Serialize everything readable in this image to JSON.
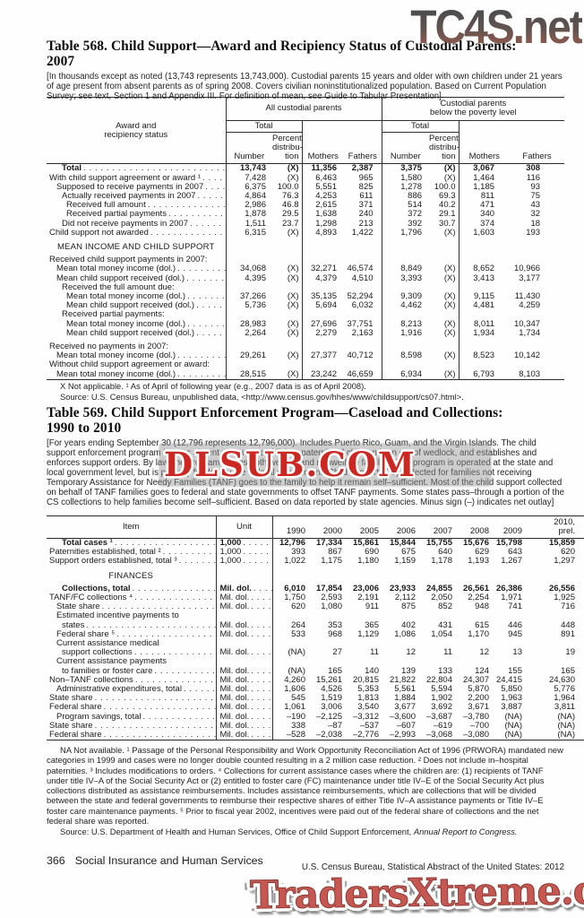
{
  "watermarks": {
    "top": "TC4S.net",
    "middle": "DLSUB.COM",
    "bottom": "TradersXtreme.com"
  },
  "table568": {
    "title_line1": "Table 568. Child Support—Award and Recipiency Status of Custodial Parents:",
    "title_line2": "2007",
    "headnote": "[In thousands except as noted (13,743 represents 13,743,000). Custodial parents 15 years and older with own children under 21 years of age present from absent parents as of spring 2008. Covers civilian noninstitutionalized population. Based on Current Population Survey; see text, Section 1 and Appendix III. For definition of mean, see Guide to Tabular Presentation]",
    "stub_header": "Award and\nrecipiency status",
    "group1": "All custodial parents",
    "group2": "Custodial parents\nbelow the poverty level",
    "total_label": "Total",
    "number_label": "Number",
    "percent_label": "Percent\ndistribu-\ntion",
    "mothers_label": "Mothers",
    "fathers_label": "Fathers",
    "rows": [
      {
        "label": "Total",
        "bold": true,
        "indent": 2,
        "values": [
          "13,743",
          "(X)",
          "11,356",
          "2,387",
          "3,375",
          "(X)",
          "3,067",
          "308"
        ]
      },
      {
        "label": "With child support agreement or award ¹",
        "indent": 0,
        "values": [
          "7,428",
          "(X)",
          "6,463",
          "965",
          "1,580",
          "(X)",
          "1,464",
          "116"
        ]
      },
      {
        "label": "Supposed to receive payments in 2007",
        "indent": 1,
        "values": [
          "6,375",
          "100.0",
          "5,551",
          "825",
          "1,278",
          "100.0",
          "1,185",
          "93"
        ]
      },
      {
        "label": "Actually received payments in 2007",
        "indent": 2,
        "values": [
          "4,864",
          "76.3",
          "4,253",
          "611",
          "886",
          "69.3",
          "811",
          "75"
        ]
      },
      {
        "label": "Received full amount",
        "indent": 3,
        "values": [
          "2,986",
          "46.8",
          "2,615",
          "371",
          "514",
          "40.2",
          "471",
          "43"
        ]
      },
      {
        "label": "Received partial payments",
        "indent": 3,
        "values": [
          "1,878",
          "29.5",
          "1,638",
          "240",
          "372",
          "29.1",
          "340",
          "32"
        ]
      },
      {
        "label": "Did not receive payments in 2007",
        "indent": 2,
        "values": [
          "1,511",
          "23.7",
          "1,298",
          "213",
          "392",
          "30.7",
          "374",
          "18"
        ]
      },
      {
        "label": "Child support not awarded",
        "indent": 0,
        "values": [
          "6,315",
          "(X)",
          "4,893",
          "1,422",
          "1,796",
          "(X)",
          "1,603",
          "193"
        ]
      },
      {
        "type": "section",
        "label": "MEAN INCOME AND CHILD SUPPORT"
      },
      {
        "type": "label",
        "label": "Received child support payments in 2007:",
        "indent": 0
      },
      {
        "label": "Mean total money income (dol.)",
        "indent": 1,
        "values": [
          "34,068",
          "(X)",
          "32,271",
          "46,574",
          "8,849",
          "(X)",
          "8,652",
          "10,966"
        ]
      },
      {
        "label": "Mean child support received (dol.)",
        "indent": 1,
        "values": [
          "4,395",
          "(X)",
          "4,379",
          "4,510",
          "3,393",
          "(X)",
          "3,413",
          "3,177"
        ]
      },
      {
        "type": "label",
        "label": "Received the full amount due:",
        "indent": 2
      },
      {
        "label": "Mean total money income (dol.)",
        "indent": 3,
        "values": [
          "37,266",
          "(X)",
          "35,135",
          "52,294",
          "9,309",
          "(X)",
          "9,115",
          "11,430"
        ]
      },
      {
        "label": "Mean child support received (dol.)",
        "indent": 3,
        "values": [
          "5,736",
          "(X)",
          "5,694",
          "6,032",
          "4,462",
          "(X)",
          "4,481",
          "4,259"
        ]
      },
      {
        "type": "label",
        "label": "Received partial payments:",
        "indent": 2
      },
      {
        "label": "Mean total money income (dol.)",
        "indent": 3,
        "values": [
          "28,983",
          "(X)",
          "27,696",
          "37,751",
          "8,213",
          "(X)",
          "8,011",
          "10,347"
        ]
      },
      {
        "label": "Mean child support received (dol.)",
        "indent": 3,
        "values": [
          "2,264",
          "(X)",
          "2,279",
          "2,163",
          "1,916",
          "(X)",
          "1,934",
          "1,734"
        ]
      },
      {
        "type": "gap"
      },
      {
        "type": "label",
        "label": "Received no payments in 2007:",
        "indent": 0
      },
      {
        "label": "Mean total money income (dol.)",
        "indent": 1,
        "values": [
          "29,261",
          "(X)",
          "27,377",
          "40,712",
          "8,598",
          "(X)",
          "8,523",
          "10,142"
        ]
      },
      {
        "type": "label",
        "label": "Without child support agreement or award:",
        "indent": 0
      },
      {
        "label": "Mean total money income (dol.)",
        "indent": 1,
        "values": [
          "28,515",
          "(X)",
          "23,242",
          "46,659",
          "6,934",
          "(X)",
          "6,793",
          "8,103"
        ]
      }
    ],
    "footnote": "X Not applicable. ¹ As of April of following year (e.g., 2007 data is as of April 2008).",
    "source": "Source: U.S. Census Bureau, unpublished data, <http://www.census.gov/hhes/www/childsupport/cs07.html>."
  },
  "table569": {
    "title_line1": "Table 569. Child Support Enforcement Program—Caseload and Collections:",
    "title_line2": "1990 to 2010",
    "headnote": "[For years ending September 30 (12,796 represents 12,796,000). Includes Puerto Rico, Guam, and the Virgin Islands. The child support enforcement program locates absent parents, establishes paternity of children born out of wedlock, and establishes and enforces support orders. By law, the program serves both welfare and nonwelfare families. The program is operated at the state and local government level, but is partially funded by the federal government. Child support (CS) collected for families not receiving Temporary Assistance for Needy Families (TANF) goes to the family to help it remain self–sufficient. Most of the child support collected on behalf of TANF families goes to federal and state governments to offset TANF payments. Some states pass–through a portion of the CS collections to help families become self–sufficient. Based on data reported by state agencies. Minus sign (–) indicates net outlay]",
    "item_header": "Item",
    "unit_header": "Unit",
    "years": [
      "1990",
      "2000",
      "2005",
      "2006",
      "2007",
      "2008",
      "2009"
    ],
    "year_last": "2010,\nprel.",
    "rows": [
      {
        "label": "Total cases ¹",
        "bold": true,
        "indent": 2,
        "unit": "1,000",
        "values": [
          "12,796",
          "17,334",
          "15,861",
          "15,844",
          "15,755",
          "15,676",
          "15,798",
          "15,859"
        ]
      },
      {
        "label": "Paternities established, total ²",
        "indent": 0,
        "unit": "1,000",
        "values": [
          "393",
          "867",
          "690",
          "675",
          "640",
          "629",
          "643",
          "620"
        ]
      },
      {
        "label": "Support orders established, total ³",
        "indent": 0,
        "unit": "1,000",
        "values": [
          "1,022",
          "1,175",
          "1,180",
          "1,159",
          "1,178",
          "1,193",
          "1,267",
          "1,297"
        ]
      },
      {
        "type": "section",
        "label": "FINANCES"
      },
      {
        "label": "Collections, total",
        "bold": true,
        "indent": 2,
        "unit": "Mil. dol.",
        "values": [
          "6,010",
          "17,854",
          "23,006",
          "23,933",
          "24,855",
          "26,561",
          "26,386",
          "26,556"
        ]
      },
      {
        "label": "TANF/FC collections ⁴",
        "indent": 0,
        "unit": "Mil. dol.",
        "values": [
          "1,750",
          "2,593",
          "2,191",
          "2,112",
          "2,050",
          "2,254",
          "1,971",
          "1,925"
        ]
      },
      {
        "label": "State share",
        "indent": 1,
        "unit": "Mil. dol.",
        "values": [
          "620",
          "1,080",
          "911",
          "875",
          "852",
          "948",
          "741",
          "716"
        ]
      },
      {
        "type": "label",
        "label": "Estimated incentive payments to",
        "indent": 1
      },
      {
        "label": "states",
        "indent": 2,
        "unit": "Mil. dol.",
        "values": [
          "264",
          "353",
          "365",
          "402",
          "431",
          "615",
          "446",
          "448"
        ]
      },
      {
        "label": "Federal share ⁵",
        "indent": 1,
        "unit": "Mil. dol.",
        "values": [
          "533",
          "968",
          "1,129",
          "1,086",
          "1,054",
          "1,170",
          "945",
          "891"
        ]
      },
      {
        "type": "label",
        "label": "Current assistance medical",
        "indent": 1
      },
      {
        "label": "support collections",
        "indent": 2,
        "unit": "Mil. dol.",
        "values": [
          "(NA)",
          "27",
          "11",
          "12",
          "11",
          "12",
          "13",
          "19"
        ]
      },
      {
        "type": "label",
        "label": "Current assistance payments",
        "indent": 1
      },
      {
        "label": "to families or foster care",
        "indent": 2,
        "unit": "Mil. dol.",
        "values": [
          "(NA)",
          "165",
          "140",
          "139",
          "133",
          "124",
          "155",
          "165"
        ]
      },
      {
        "label": "Non–TANF collections",
        "indent": 0,
        "unit": "Mil. dol.",
        "values": [
          "4,260",
          "15,261",
          "20,815",
          "21,822",
          "22,804",
          "24,307",
          "24,415",
          "24,630"
        ]
      },
      {
        "label": "Administrative expenditures, total",
        "indent": 1,
        "unit": "Mil. dol.",
        "values": [
          "1,606",
          "4,526",
          "5,353",
          "5,561",
          "5,594",
          "5,870",
          "5,850",
          "5,776"
        ]
      },
      {
        "label": "State share",
        "indent": 0,
        "unit": "Mil. dol.",
        "values": [
          "545",
          "1,519",
          "1,813",
          "1,884",
          "1,902",
          "2,200",
          "1,963",
          "1,964"
        ]
      },
      {
        "label": "Federal share",
        "indent": 0,
        "unit": "Mil. dol.",
        "values": [
          "1,061",
          "3,006",
          "3,540",
          "3,677",
          "3,692",
          "3,671",
          "3,887",
          "3,811"
        ]
      },
      {
        "label": "Program savings, total",
        "indent": 1,
        "unit": "Mil. dol.",
        "values": [
          "–190",
          "–2,125",
          "–3,312",
          "–3,600",
          "–3,687",
          "–3,780",
          "(NA)",
          "(NA)"
        ]
      },
      {
        "label": "State share",
        "indent": 0,
        "unit": "Mil. dol.",
        "values": [
          "338",
          "–87",
          "–537",
          "–607",
          "–619",
          "–700",
          "(NA)",
          "(NA)"
        ]
      },
      {
        "label": "Federal share",
        "indent": 0,
        "unit": "Mil. dol.",
        "values": [
          "–528",
          "–2,038",
          "–2,776",
          "–2,993",
          "–3,068",
          "–3,080",
          "(NA)",
          "(NA)"
        ]
      }
    ],
    "footnote": "NA Not available. ¹ Passage of the Personal Responsibility and Work Opportunity Reconciliation Act of 1996 (PRWORA) mandated new categories in 1999 and cases were no longer double counted resulting in a 2 million case reduction. ² Does not include in–hospital paternities. ³ Includes modifications to orders. ⁴ Collections for current assistance cases where the children are: (1) recipients of TANF under title IV–A of the Social Security Act or (2) entitled to foster care (FC) maintenance under title IV–E of the Social Security Act plus collections distributed as assistance reimbursements. Includes assistance reimbursements, which are collections that will be divided between the state and federal governments to reimburse their respective shares of either Title IV–A assistance payments or Title IV–E foster care maintenance payments. ⁵ Prior to fiscal year 2002, incentives were paid out of the federal share of collections and the net federal share was reported.",
    "source_prefix": "Source: U.S. Department of Health and Human Services, Office of Child Support Enforcement, ",
    "source_italic": "Annual Report to Congress."
  },
  "footer": {
    "page_number": "366",
    "section_title": "Social Insurance and Human Services",
    "imprint": "U.S. Census Bureau, Statistical Abstract of the United States: 2012"
  }
}
